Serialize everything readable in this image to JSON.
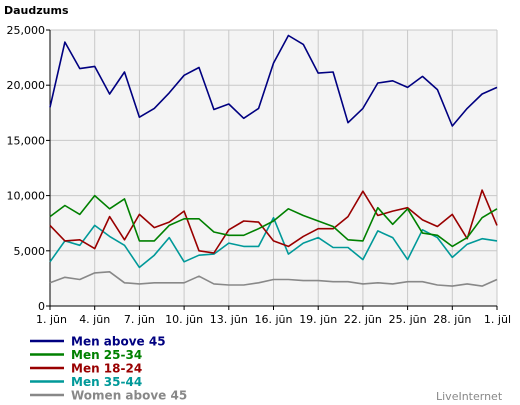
{
  "chart_data": {
    "type": "line",
    "ylabel": "Daudzums",
    "ylim": [
      0,
      25000
    ],
    "yticks": [
      0,
      5000,
      10000,
      15000,
      20000,
      25000
    ],
    "ytick_labels": [
      "0",
      "5,000",
      "10,000",
      "15,000",
      "20,000",
      "25,000"
    ],
    "x_tick_labels": [
      "1. jūn",
      "4. jūn",
      "7. jūn",
      "10. jūn",
      "13. jūn",
      "16. jūn",
      "19. jūn",
      "22. jūn",
      "25. jūn",
      "28. jūn",
      "1. jūl"
    ],
    "x_tick_every": 3,
    "grid": true,
    "legend_position": "bottom-left",
    "series": [
      {
        "name": "Men above 45",
        "color": "#000080",
        "values": [
          18000,
          23900,
          21500,
          21700,
          19200,
          21200,
          17100,
          17900,
          19300,
          20900,
          21600,
          17800,
          18300,
          17000,
          17900,
          22000,
          24500,
          23700,
          21100,
          21200,
          16600,
          17900,
          20200,
          20400,
          19800,
          20800,
          19600,
          16300,
          17900,
          19200,
          19800
        ]
      },
      {
        "name": "Men 25-34",
        "color": "#008000",
        "values": [
          8100,
          9100,
          8300,
          10000,
          8800,
          9700,
          5900,
          5900,
          7300,
          7900,
          7900,
          6700,
          6400,
          6400,
          7000,
          7700,
          8800,
          8200,
          7700,
          7200,
          6000,
          5900,
          8900,
          7400,
          8800,
          6600,
          6400,
          5400,
          6200,
          8000,
          8800
        ]
      },
      {
        "name": "Men 18-24",
        "color": "#990000",
        "values": [
          7300,
          5900,
          6000,
          5200,
          8100,
          6000,
          8300,
          7100,
          7600,
          8600,
          5000,
          4800,
          6900,
          7700,
          7600,
          5900,
          5400,
          6300,
          7000,
          7000,
          8100,
          10400,
          8200,
          8600,
          8900,
          7800,
          7200,
          8300,
          6100,
          10500,
          7300
        ]
      },
      {
        "name": "Men 35-44",
        "color": "#009999",
        "values": [
          4000,
          5900,
          5500,
          7300,
          6300,
          5500,
          3500,
          4600,
          6200,
          4000,
          4600,
          4700,
          5700,
          5400,
          5400,
          8000,
          4700,
          5700,
          6200,
          5300,
          5300,
          4200,
          6800,
          6200,
          4200,
          6900,
          6200,
          4400,
          5600,
          6100,
          5900
        ]
      },
      {
        "name": "Women above 45",
        "color": "#888888",
        "values": [
          2100,
          2600,
          2400,
          3000,
          3100,
          2100,
          2000,
          2100,
          2100,
          2100,
          2700,
          2000,
          1900,
          1900,
          2100,
          2400,
          2400,
          2300,
          2300,
          2200,
          2200,
          2000,
          2100,
          2000,
          2200,
          2200,
          1900,
          1800,
          2000,
          1800,
          2400
        ]
      }
    ]
  },
  "branding": {
    "label": "LiveInternet"
  }
}
